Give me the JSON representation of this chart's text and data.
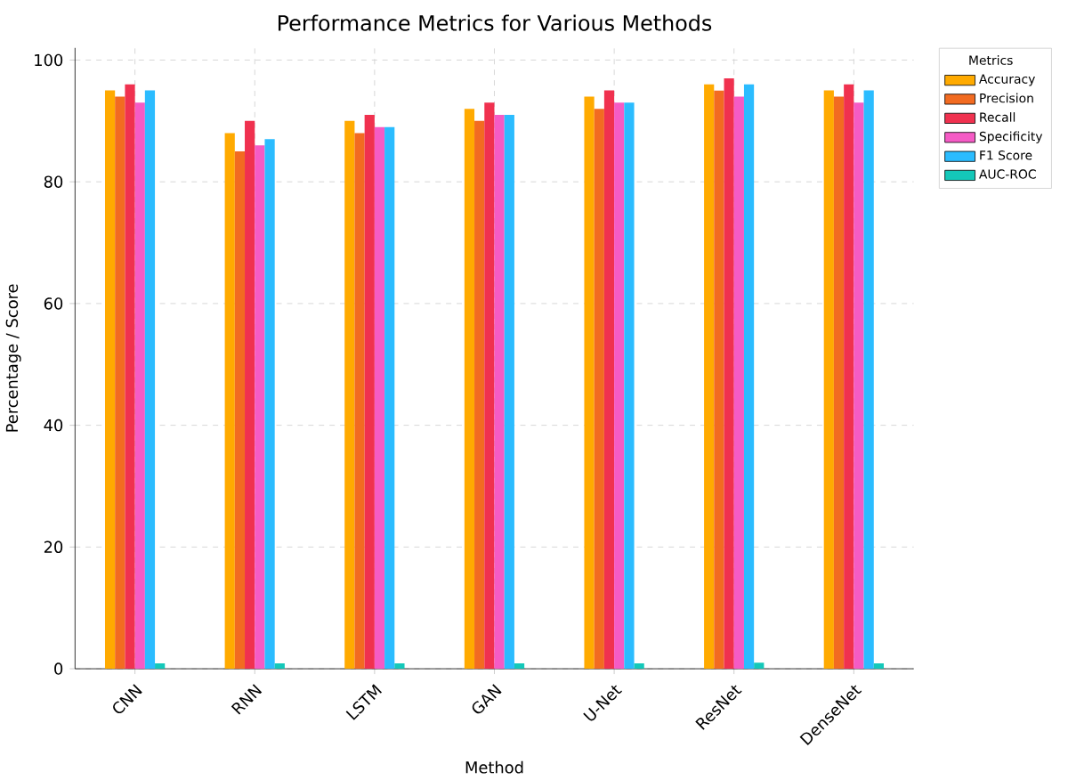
{
  "chart_data": {
    "type": "bar",
    "title": "Performance Metrics for Various Methods",
    "xlabel": "Method",
    "ylabel": "Percentage / Score",
    "legend_title": "Metrics",
    "categories": [
      "CNN",
      "RNN",
      "LSTM",
      "GAN",
      "U-Net",
      "ResNet",
      "DenseNet"
    ],
    "series": [
      {
        "name": "Accuracy",
        "color": "#ffaa00",
        "values": [
          95,
          88,
          90,
          92,
          94,
          96,
          95
        ]
      },
      {
        "name": "Precision",
        "color": "#f26b21",
        "values": [
          94,
          85,
          88,
          90,
          92,
          95,
          94
        ]
      },
      {
        "name": "Recall",
        "color": "#f0314f",
        "values": [
          96,
          90,
          91,
          93,
          95,
          97,
          96
        ]
      },
      {
        "name": "Specificity",
        "color": "#f55bc5",
        "values": [
          93,
          86,
          89,
          91,
          93,
          94,
          93
        ]
      },
      {
        "name": "F1 Score",
        "color": "#2bbcff",
        "values": [
          95,
          87,
          89,
          91,
          93,
          96,
          95
        ]
      },
      {
        "name": "AUC-ROC",
        "color": "#14c8b9",
        "values": [
          0.9,
          0.9,
          0.9,
          0.9,
          0.9,
          1,
          0.9
        ]
      }
    ],
    "ylim": [
      0,
      102
    ],
    "yticks": [
      0,
      20,
      40,
      60,
      80,
      100
    ],
    "grid": true,
    "legend": "top right"
  }
}
